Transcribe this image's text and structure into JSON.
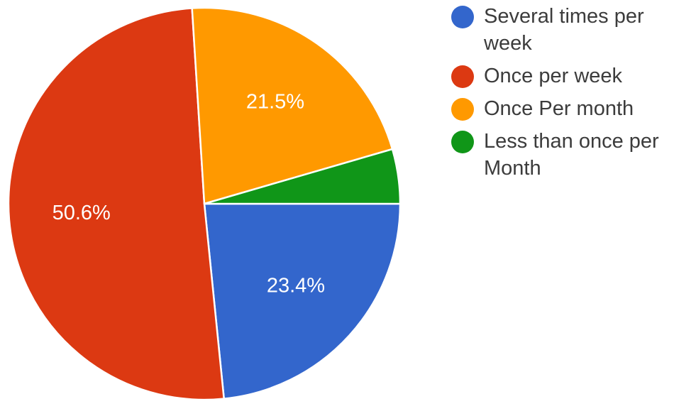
{
  "chart_data": {
    "type": "pie",
    "title": "",
    "slices": [
      {
        "label": "Several times per week",
        "value": 23.4,
        "display": "23.4%",
        "color": "#3366cc"
      },
      {
        "label": "Once per week",
        "value": 50.6,
        "display": "50.6%",
        "color": "#dc3912"
      },
      {
        "label": "Once Per month",
        "value": 21.5,
        "display": "21.5%",
        "color": "#ff9900"
      },
      {
        "label": "Less than once per Month",
        "value": 4.5,
        "display": "",
        "color": "#109618"
      }
    ],
    "legend_position": "right"
  },
  "legend": {
    "items": [
      {
        "label": "Several times per week",
        "color": "#3366cc"
      },
      {
        "label": "Once per week",
        "color": "#dc3912"
      },
      {
        "label": "Once Per month",
        "color": "#ff9900"
      },
      {
        "label": "Less than once per Month",
        "color": "#109618"
      }
    ]
  }
}
